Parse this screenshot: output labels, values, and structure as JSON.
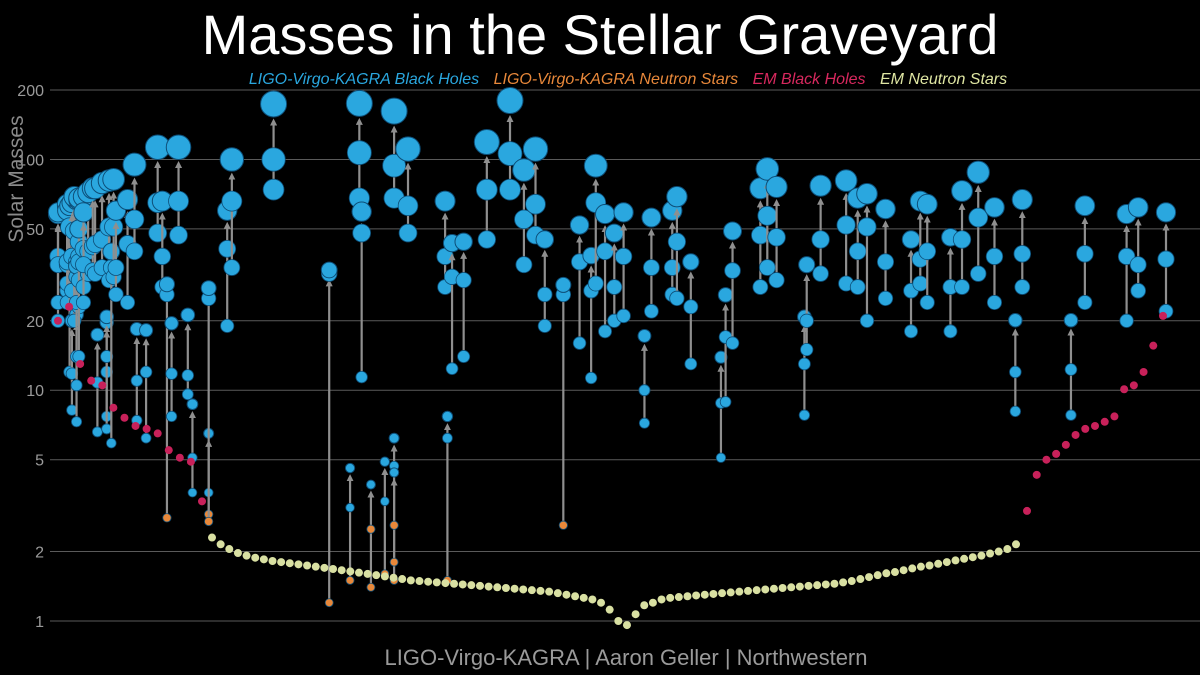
{
  "title": "Masses in the Stellar Graveyard",
  "footer": "LIGO-Virgo-KAGRA | Aaron Geller | Northwestern",
  "legend": [
    {
      "label": "LIGO-Virgo-KAGRA Black Holes",
      "color": "#2aa7df"
    },
    {
      "label": "LIGO-Virgo-KAGRA Neutron Stars",
      "color": "#e8883a"
    },
    {
      "label": "EM Black Holes",
      "color": "#d8285e"
    },
    {
      "label": "EM Neutron Stars",
      "color": "#dfe6a3"
    }
  ],
  "colors": {
    "bh": "#2aa7df",
    "ns": "#e8883a",
    "em_bh": "#c8215a",
    "em_ns": "#d9e0a2",
    "arrow": "#8f8f8f",
    "grid": "#5a5a5a"
  },
  "chart_data": {
    "type": "scatter",
    "title": "Masses in the Stellar Graveyard",
    "ylabel": "Solar Masses",
    "yscale": "log",
    "ylim": [
      0.9,
      220
    ],
    "yticks": [
      1,
      2,
      5,
      10,
      20,
      50,
      100,
      200
    ],
    "grid": true,
    "legend_position": "top",
    "series": [
      {
        "name": "LIGO-Virgo-KAGRA Black Holes",
        "mergers": [
          [
            20,
            38,
            55
          ],
          [
            24,
            35,
            55
          ],
          [
            27,
            36,
            59
          ],
          [
            27,
            36,
            59
          ],
          [
            29,
            35,
            59
          ],
          [
            24,
            36,
            59
          ],
          [
            51,
            12,
            60
          ],
          [
            8.2,
            11.8,
            61
          ],
          [
            27,
            38,
            61
          ],
          [
            7.3,
            14,
            63
          ],
          [
            31,
            36,
            63
          ],
          [
            20,
            49,
            62
          ],
          [
            23,
            44,
            64
          ],
          [
            24,
            10.5,
            63
          ],
          [
            38,
            30,
            64
          ],
          [
            14,
            36,
            64
          ],
          [
            41,
            28,
            66
          ],
          [
            32,
            40,
            68
          ],
          [
            24,
            35,
            66
          ],
          [
            33,
            42,
            70
          ],
          [
            32,
            43,
            71
          ],
          [
            6.6,
            10.8,
            72
          ],
          [
            34,
            45,
            74
          ],
          [
            7.7,
            12,
            76
          ],
          [
            6.8,
            14,
            76
          ],
          [
            30,
            51,
            77
          ],
          [
            34,
            5.9,
            78
          ],
          [
            31,
            51,
            79
          ],
          [
            26,
            34,
            80
          ],
          [
            24,
            43,
            85
          ],
          [
            40,
            55,
            88
          ],
          [
            7.4,
            11,
            89
          ],
          [
            6.2,
            12,
            93
          ],
          [
            48,
            65,
            98
          ],
          [
            28,
            38,
            100
          ],
          [
            2.8,
            26,
            102
          ],
          [
            7.7,
            11.8,
            104
          ],
          [
            47,
            66,
            107
          ],
          [
            9.6,
            11.6,
            111
          ],
          [
            3.6,
            5.1,
            113
          ],
          [
            2.9,
            3.6,
            120
          ],
          [
            2.7,
            25,
            120
          ],
          [
            19,
            41,
            128
          ],
          [
            34,
            66,
            130
          ],
          [
            74,
            100,
            148
          ],
          [
            1.2,
            32,
            172
          ],
          [
            1.5,
            3.1,
            181
          ],
          [
            68,
            107,
            185
          ],
          [
            11.4,
            48,
            186
          ],
          [
            1.4,
            2.5,
            190
          ],
          [
            1.6,
            3.3,
            196
          ],
          [
            68,
            94,
            200
          ],
          [
            1.5,
            4.7,
            200
          ],
          [
            1.8,
            2.6,
            200
          ],
          [
            48,
            63,
            206
          ],
          [
            28,
            38,
            222
          ],
          [
            1.5,
            6.2,
            223
          ],
          [
            12.4,
            31,
            225
          ],
          [
            14,
            30,
            230
          ],
          [
            45,
            74,
            240
          ],
          [
            74,
            106,
            250
          ],
          [
            35,
            55,
            256
          ],
          [
            47,
            64,
            261
          ],
          [
            19,
            26,
            265
          ],
          [
            2.6,
            26,
            273
          ],
          [
            16,
            36,
            280
          ],
          [
            11.3,
            27,
            285
          ],
          [
            29,
            65,
            287
          ],
          [
            18,
            40,
            291
          ],
          [
            20,
            28,
            295
          ],
          [
            21,
            38,
            299
          ],
          [
            7.2,
            10,
            308
          ],
          [
            22,
            34,
            311
          ],
          [
            26,
            34,
            320
          ],
          [
            25,
            44,
            322
          ],
          [
            13,
            23,
            328
          ],
          [
            5.1,
            8.8,
            341
          ],
          [
            8.9,
            17,
            343
          ],
          [
            16,
            33,
            346
          ],
          [
            28,
            47,
            358
          ],
          [
            34,
            57,
            361
          ],
          [
            30,
            46,
            365
          ],
          [
            7.8,
            13,
            377
          ],
          [
            15,
            20,
            378
          ],
          [
            32,
            45,
            384
          ],
          [
            29,
            52,
            395
          ],
          [
            28,
            40,
            400
          ],
          [
            20,
            51,
            404
          ],
          [
            25,
            36,
            412
          ],
          [
            18,
            27,
            423
          ],
          [
            29,
            37,
            427
          ],
          [
            24,
            40,
            430
          ],
          [
            18,
            28,
            440
          ],
          [
            28,
            45,
            445
          ],
          [
            32,
            56,
            452
          ],
          [
            24,
            38,
            459
          ],
          [
            8.1,
            12,
            468
          ],
          [
            28,
            39,
            471
          ],
          [
            7.8,
            12.3,
            492
          ],
          [
            24,
            39,
            498
          ],
          [
            20,
            38,
            516
          ],
          [
            27,
            35,
            521
          ],
          [
            22,
            37,
            533
          ]
        ]
      },
      {
        "name": "LIGO-Virgo-KAGRA Neutron Stars",
        "values": [
          2.8,
          2.1,
          1.4,
          1.45,
          1.3,
          1.2,
          1.3,
          2.1,
          1.45
        ]
      },
      {
        "name": "EM Black Holes",
        "values": [
          20,
          23,
          13,
          11,
          10.5,
          8.4,
          7.6,
          7,
          6.8,
          6.5,
          5.5,
          5.1,
          4.9,
          3.3,
          3,
          4.3,
          5,
          5.3,
          5.8,
          6.4,
          6.8,
          7,
          7.3,
          7.7,
          10.1,
          10.5,
          12,
          15.6,
          21
        ]
      },
      {
        "name": "EM Neutron Stars",
        "values": [
          2.3,
          2.15,
          2.05,
          1.97,
          1.92,
          1.88,
          1.85,
          1.82,
          1.8,
          1.78,
          1.76,
          1.74,
          1.72,
          1.7,
          1.68,
          1.66,
          1.64,
          1.62,
          1.6,
          1.58,
          1.56,
          1.54,
          1.52,
          1.5,
          1.49,
          1.48,
          1.47,
          1.46,
          1.45,
          1.44,
          1.43,
          1.42,
          1.41,
          1.4,
          1.39,
          1.38,
          1.37,
          1.36,
          1.35,
          1.34,
          1.32,
          1.3,
          1.28,
          1.26,
          1.24,
          1.2,
          1.12,
          1.0,
          0.96,
          1.07,
          1.17,
          1.2,
          1.24,
          1.26,
          1.27,
          1.28,
          1.29,
          1.3,
          1.31,
          1.32,
          1.33,
          1.34,
          1.35,
          1.36,
          1.37,
          1.38,
          1.39,
          1.4,
          1.41,
          1.42,
          1.43,
          1.44,
          1.45,
          1.47,
          1.49,
          1.52,
          1.55,
          1.58,
          1.61,
          1.63,
          1.66,
          1.69,
          1.72,
          1.74,
          1.77,
          1.8,
          1.83,
          1.86,
          1.89,
          1.92,
          1.96,
          2.0,
          2.05,
          2.15
        ]
      }
    ]
  }
}
